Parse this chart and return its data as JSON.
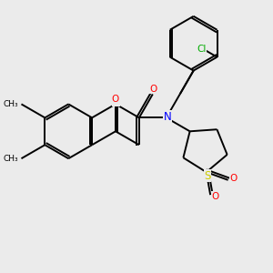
{
  "background_color": "#ebebeb",
  "bond_color": "#000000",
  "atom_colors": {
    "O": "#ff0000",
    "N": "#0000ff",
    "S": "#cccc00",
    "Cl": "#00aa00"
  },
  "lw": 1.4,
  "fs": 7.5
}
